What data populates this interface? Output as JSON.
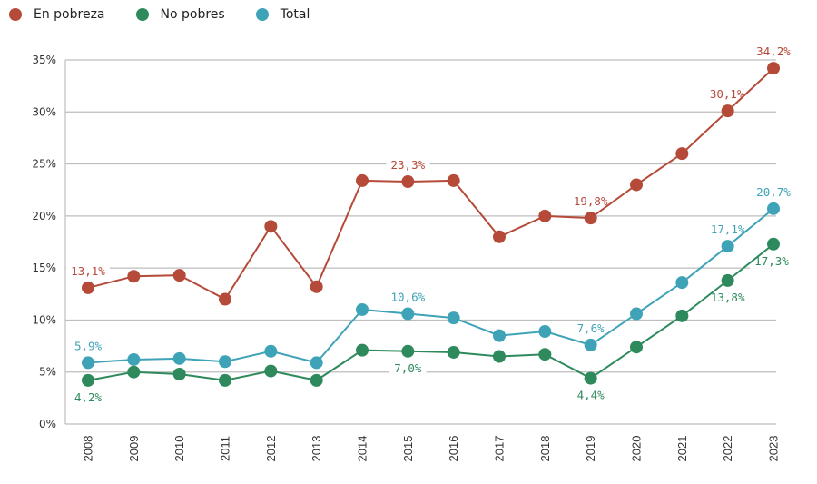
{
  "legend": [
    {
      "label": "En pobreza",
      "color": "#b54a38"
    },
    {
      "label": "No pobres",
      "color": "#2e8a5c"
    },
    {
      "label": "Total",
      "color": "#3fa3b8"
    }
  ],
  "chart_data": {
    "type": "line",
    "title": "",
    "xlabel": "",
    "ylabel": "",
    "x": [
      "2008",
      "2009",
      "2010",
      "2011",
      "2012",
      "2013",
      "2014",
      "2015",
      "2016",
      "2017",
      "2018",
      "2019",
      "2020",
      "2021",
      "2022",
      "2023"
    ],
    "ylim": [
      0,
      35
    ],
    "yticks": [
      0,
      5,
      10,
      15,
      20,
      25,
      30,
      35
    ],
    "ytick_labels": [
      "0%",
      "5%",
      "10%",
      "15%",
      "20%",
      "25%",
      "30%",
      "35%"
    ],
    "grid": true,
    "legend_position": "top-left",
    "series": [
      {
        "name": "En pobreza",
        "color": "#b54a38",
        "values": [
          13.1,
          14.2,
          14.3,
          12.0,
          19.0,
          13.2,
          23.4,
          23.3,
          23.4,
          18.0,
          20.0,
          19.8,
          23.0,
          26.0,
          30.1,
          34.2
        ]
      },
      {
        "name": "No pobres",
        "color": "#2e8a5c",
        "values": [
          4.2,
          5.0,
          4.8,
          4.2,
          5.1,
          4.2,
          7.1,
          7.0,
          6.9,
          6.5,
          6.7,
          4.4,
          7.4,
          10.4,
          13.8,
          17.3
        ]
      },
      {
        "name": "Total",
        "color": "#3fa3b8",
        "values": [
          5.9,
          6.2,
          6.3,
          6.0,
          7.0,
          5.9,
          11.0,
          10.6,
          10.2,
          8.5,
          8.9,
          7.6,
          10.6,
          13.6,
          17.1,
          20.7
        ]
      }
    ],
    "annotations": [
      {
        "series": "En pobreza",
        "x": "2008",
        "text": "13,1%",
        "pos": "above"
      },
      {
        "series": "En pobreza",
        "x": "2015",
        "text": "23,3%",
        "pos": "above"
      },
      {
        "series": "En pobreza",
        "x": "2019",
        "text": "19,8%",
        "pos": "above"
      },
      {
        "series": "En pobreza",
        "x": "2022",
        "text": "30,1%",
        "pos": "above-left"
      },
      {
        "series": "En pobreza",
        "x": "2023",
        "text": "34,2%",
        "pos": "above"
      },
      {
        "series": "Total",
        "x": "2008",
        "text": "5,9%",
        "pos": "above"
      },
      {
        "series": "Total",
        "x": "2015",
        "text": "10,6%",
        "pos": "above"
      },
      {
        "series": "Total",
        "x": "2019",
        "text": "7,6%",
        "pos": "above"
      },
      {
        "series": "Total",
        "x": "2022",
        "text": "17,1%",
        "pos": "above"
      },
      {
        "series": "Total",
        "x": "2023",
        "text": "20,7%",
        "pos": "above"
      },
      {
        "series": "No pobres",
        "x": "2008",
        "text": "4,2%",
        "pos": "below"
      },
      {
        "series": "No pobres",
        "x": "2015",
        "text": "7,0%",
        "pos": "below"
      },
      {
        "series": "No pobres",
        "x": "2019",
        "text": "4,4%",
        "pos": "below"
      },
      {
        "series": "No pobres",
        "x": "2022",
        "text": "13,8%",
        "pos": "below"
      },
      {
        "series": "No pobres",
        "x": "2023",
        "text": "17,3%",
        "pos": "below"
      }
    ]
  }
}
